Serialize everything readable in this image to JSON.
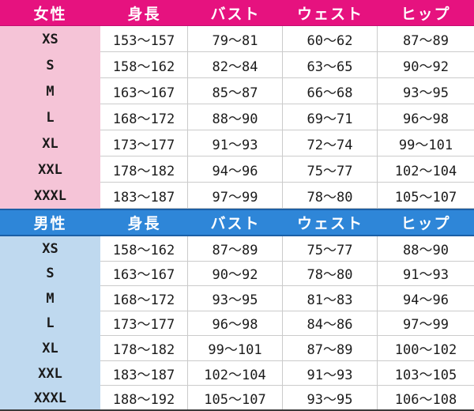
{
  "colors": {
    "women_header_bg": "#E6127F",
    "women_header_border": "#C40E71",
    "women_label_bg": "#F5C4D7",
    "men_header_bg": "#2E86D8",
    "men_header_border": "#1B5FA6",
    "men_label_bg": "#BFD9EF",
    "grid_line": "#CBCBCB",
    "text": "#1B1B1B",
    "header_text": "#FFFFFF",
    "bottom_border": "#3A3A3A"
  },
  "chart_data": [
    {
      "type": "table",
      "title": "女性",
      "columns": [
        "女性",
        "身長",
        "バスト",
        "ウェスト",
        "ヒップ"
      ],
      "rows": [
        [
          "XS",
          "153～157",
          "79～81",
          "60～62",
          "87～89"
        ],
        [
          "S",
          "158～162",
          "82～84",
          "63～65",
          "90～92"
        ],
        [
          "M",
          "163～167",
          "85～87",
          "66～68",
          "93～95"
        ],
        [
          "L",
          "168～172",
          "88～90",
          "69～71",
          "96～98"
        ],
        [
          "XL",
          "173～177",
          "91～93",
          "72～74",
          "99～101"
        ],
        [
          "XXL",
          "178～182",
          "94～96",
          "75～77",
          "102～104"
        ],
        [
          "XXXL",
          "183～187",
          "97～99",
          "78～80",
          "105～107"
        ]
      ]
    },
    {
      "type": "table",
      "title": "男性",
      "columns": [
        "男性",
        "身長",
        "バスト",
        "ウェスト",
        "ヒップ"
      ],
      "rows": [
        [
          "XS",
          "158～162",
          "87～89",
          "75～77",
          "88～90"
        ],
        [
          "S",
          "163～167",
          "90～92",
          "78～80",
          "91～93"
        ],
        [
          "M",
          "168～172",
          "93～95",
          "81～83",
          "94～96"
        ],
        [
          "L",
          "173～177",
          "96～98",
          "84～86",
          "97～99"
        ],
        [
          "XL",
          "178～182",
          "99～101",
          "87～89",
          "100～102"
        ],
        [
          "XXL",
          "183～187",
          "102～104",
          "91～93",
          "103～105"
        ],
        [
          "XXXL",
          "188～192",
          "105～107",
          "93～95",
          "106～108"
        ]
      ]
    }
  ]
}
